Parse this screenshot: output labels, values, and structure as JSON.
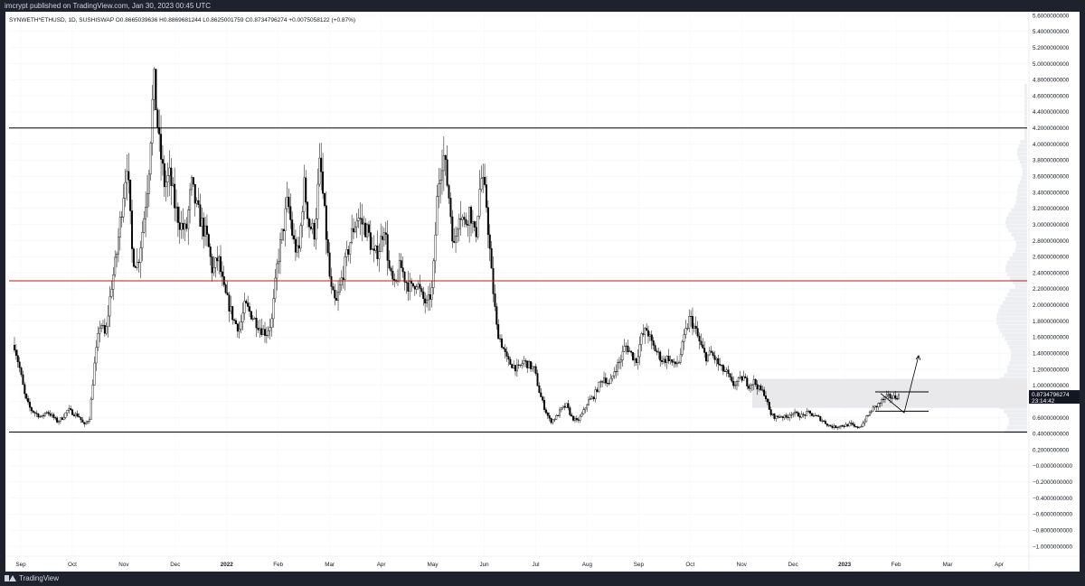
{
  "header": {
    "published_text": "imcrypt published on TradingView.com, Jan 30, 2023 00:45 UTC"
  },
  "footer": {
    "brand": "TradingView"
  },
  "chart_data": {
    "type": "candlestick",
    "symbol_line": "SYNWETH*ETHUSD, 1D, SUSHISWAP",
    "ohlc_text": {
      "open": "O0.8665039636",
      "high": "H0.8869681244",
      "low": "L0.8625001759",
      "close": "C0.8734796274",
      "change": "+0.0075058122 (+0.87%)"
    },
    "price_label": "0.8734796274",
    "countdown_label": "23:14:42",
    "ylim": [
      -1.0,
      5.6
    ],
    "y_ticks": [
      "5.6000000000",
      "5.4000000000",
      "5.2000000000",
      "5.0000000000",
      "4.8000000000",
      "4.6000000000",
      "4.4000000000",
      "4.2000000000",
      "4.0000000000",
      "3.8000000000",
      "3.6000000000",
      "3.4000000000",
      "3.2000000000",
      "3.0000000000",
      "2.8000000000",
      "2.6000000000",
      "2.4000000000",
      "2.2000000000",
      "2.0000000000",
      "1.8000000000",
      "1.6000000000",
      "1.4000000000",
      "1.2000000000",
      "1.0000000000",
      "0.8000000000",
      "0.6000000000",
      "0.4000000000",
      "0.2000000000",
      "−0.0000000000",
      "−0.2000000000",
      "−0.4000000000",
      "−0.6000000000",
      "−0.8000000000",
      "−1.0000000000"
    ],
    "x_ticks": [
      "Sep",
      "Oct",
      "Nov",
      "Dec",
      "2022",
      "Feb",
      "Mar",
      "Apr",
      "May",
      "Jun",
      "Jul",
      "Aug",
      "Sep",
      "Oct",
      "Nov",
      "Dec",
      "2023",
      "Feb",
      "Mar",
      "Apr"
    ],
    "x_tick_bold": [
      false,
      false,
      false,
      false,
      true,
      false,
      false,
      false,
      false,
      false,
      false,
      false,
      false,
      false,
      false,
      false,
      true,
      false,
      false,
      false
    ],
    "horizontal_levels": [
      {
        "value": 4.2,
        "color": "#000000"
      },
      {
        "value": 2.3,
        "color": "#b71c1c"
      },
      {
        "value": 0.42,
        "color": "#000000"
      }
    ],
    "zone": {
      "from": 0.72,
      "to": 1.08
    },
    "range_box": {
      "from": 0.68,
      "to": 0.92
    },
    "projection": [
      0.9,
      0.66,
      1.37
    ],
    "price_path": [
      1.5,
      1.2,
      0.85,
      0.7,
      0.65,
      0.6,
      0.68,
      0.62,
      0.55,
      0.6,
      0.7,
      0.65,
      0.62,
      0.5,
      0.6,
      1.3,
      1.8,
      1.6,
      2.2,
      2.6,
      3.2,
      3.8,
      2.6,
      2.5,
      3.0,
      3.6,
      4.8,
      4.0,
      3.5,
      3.6,
      3.2,
      3.0,
      2.9,
      3.5,
      3.2,
      3.0,
      2.8,
      2.4,
      2.6,
      2.2,
      2.0,
      1.8,
      1.7,
      2.0,
      1.9,
      1.8,
      1.7,
      1.65,
      1.8,
      2.5,
      2.9,
      3.3,
      2.8,
      2.6,
      3.5,
      3.0,
      2.9,
      3.8,
      3.0,
      2.2,
      2.0,
      2.3,
      2.6,
      2.9,
      3.1,
      3.0,
      2.9,
      2.6,
      2.7,
      3.0,
      2.4,
      2.2,
      2.5,
      2.3,
      2.2,
      2.3,
      2.1,
      2.0,
      2.2,
      3.5,
      3.9,
      3.4,
      2.7,
      3.2,
      3.0,
      3.2,
      2.8,
      3.6,
      3.3,
      2.4,
      1.7,
      1.5,
      1.3,
      1.25,
      1.2,
      1.3,
      1.25,
      1.2,
      0.9,
      0.7,
      0.55,
      0.6,
      0.7,
      0.75,
      0.6,
      0.55,
      0.65,
      0.8,
      0.85,
      1.0,
      1.1,
      1.0,
      1.2,
      1.3,
      1.5,
      1.4,
      1.3,
      1.6,
      1.7,
      1.5,
      1.4,
      1.3,
      1.35,
      1.25,
      1.3,
      1.6,
      1.85,
      1.7,
      1.5,
      1.35,
      1.4,
      1.3,
      1.2,
      1.15,
      1.0,
      1.05,
      1.1,
      1.0,
      1.05,
      0.95,
      0.9,
      0.65,
      0.6,
      0.62,
      0.6,
      0.66,
      0.64,
      0.62,
      0.66,
      0.63,
      0.6,
      0.55,
      0.5,
      0.48,
      0.5,
      0.5,
      0.52,
      0.47,
      0.5,
      0.6,
      0.7,
      0.75,
      0.82,
      0.86,
      0.85,
      0.87
    ]
  }
}
